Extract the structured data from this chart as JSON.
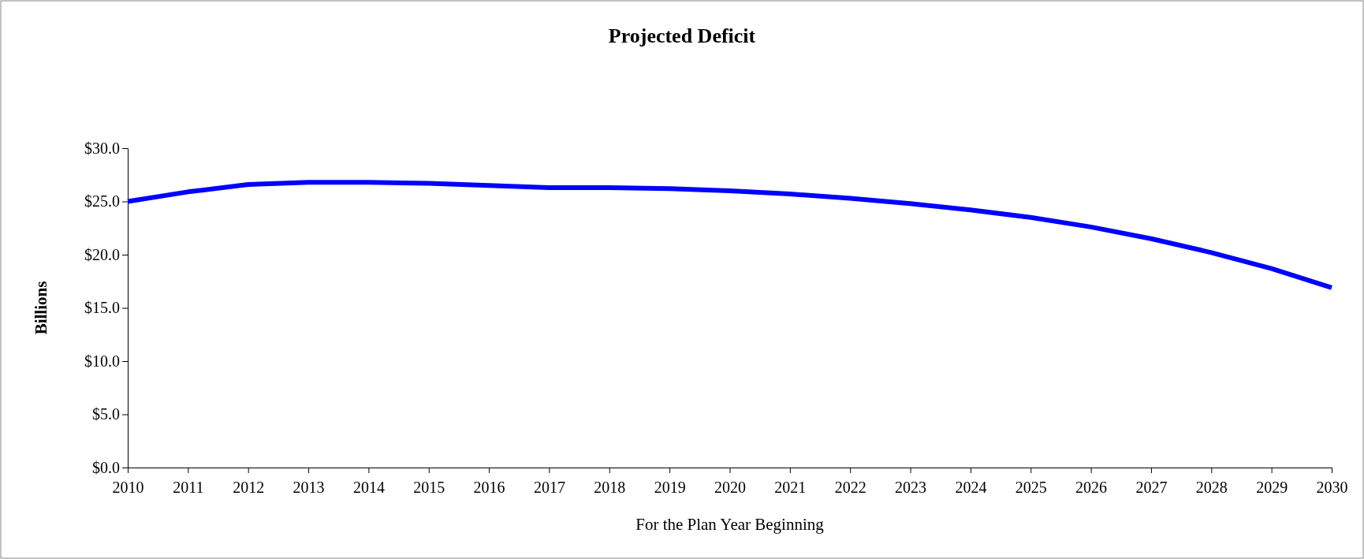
{
  "chart_data": {
    "type": "line",
    "title": "Projected Deficit",
    "xlabel": "For the Plan Year Beginning",
    "ylabel": "Billions",
    "x": [
      2010,
      2011,
      2012,
      2013,
      2014,
      2015,
      2016,
      2017,
      2018,
      2019,
      2020,
      2021,
      2022,
      2023,
      2024,
      2025,
      2026,
      2027,
      2028,
      2029,
      2030
    ],
    "series": [
      {
        "color": "#0000ff",
        "values": [
          25.0,
          25.9,
          26.6,
          26.8,
          26.8,
          26.7,
          26.5,
          26.3,
          26.3,
          26.2,
          26.0,
          25.7,
          25.3,
          24.8,
          24.2,
          23.5,
          22.6,
          21.5,
          20.2,
          18.7,
          16.9
        ]
      }
    ],
    "xlim": [
      2010,
      2030
    ],
    "xticks": [
      2010,
      2011,
      2012,
      2013,
      2014,
      2015,
      2016,
      2017,
      2018,
      2019,
      2020,
      2021,
      2022,
      2023,
      2024,
      2025,
      2026,
      2027,
      2028,
      2029,
      2030
    ],
    "ylim": [
      0,
      30
    ],
    "yticks": [
      {
        "value": 0,
        "label": "$0.0"
      },
      {
        "value": 5,
        "label": "$5.0"
      },
      {
        "value": 10,
        "label": "$10.0"
      },
      {
        "value": 15,
        "label": "$15.0"
      },
      {
        "value": 20,
        "label": "$20.0"
      },
      {
        "value": 25,
        "label": "$25.0"
      },
      {
        "value": 30,
        "label": "$30.0"
      }
    ],
    "grid": false,
    "marker": "none",
    "line_style": "solid"
  }
}
